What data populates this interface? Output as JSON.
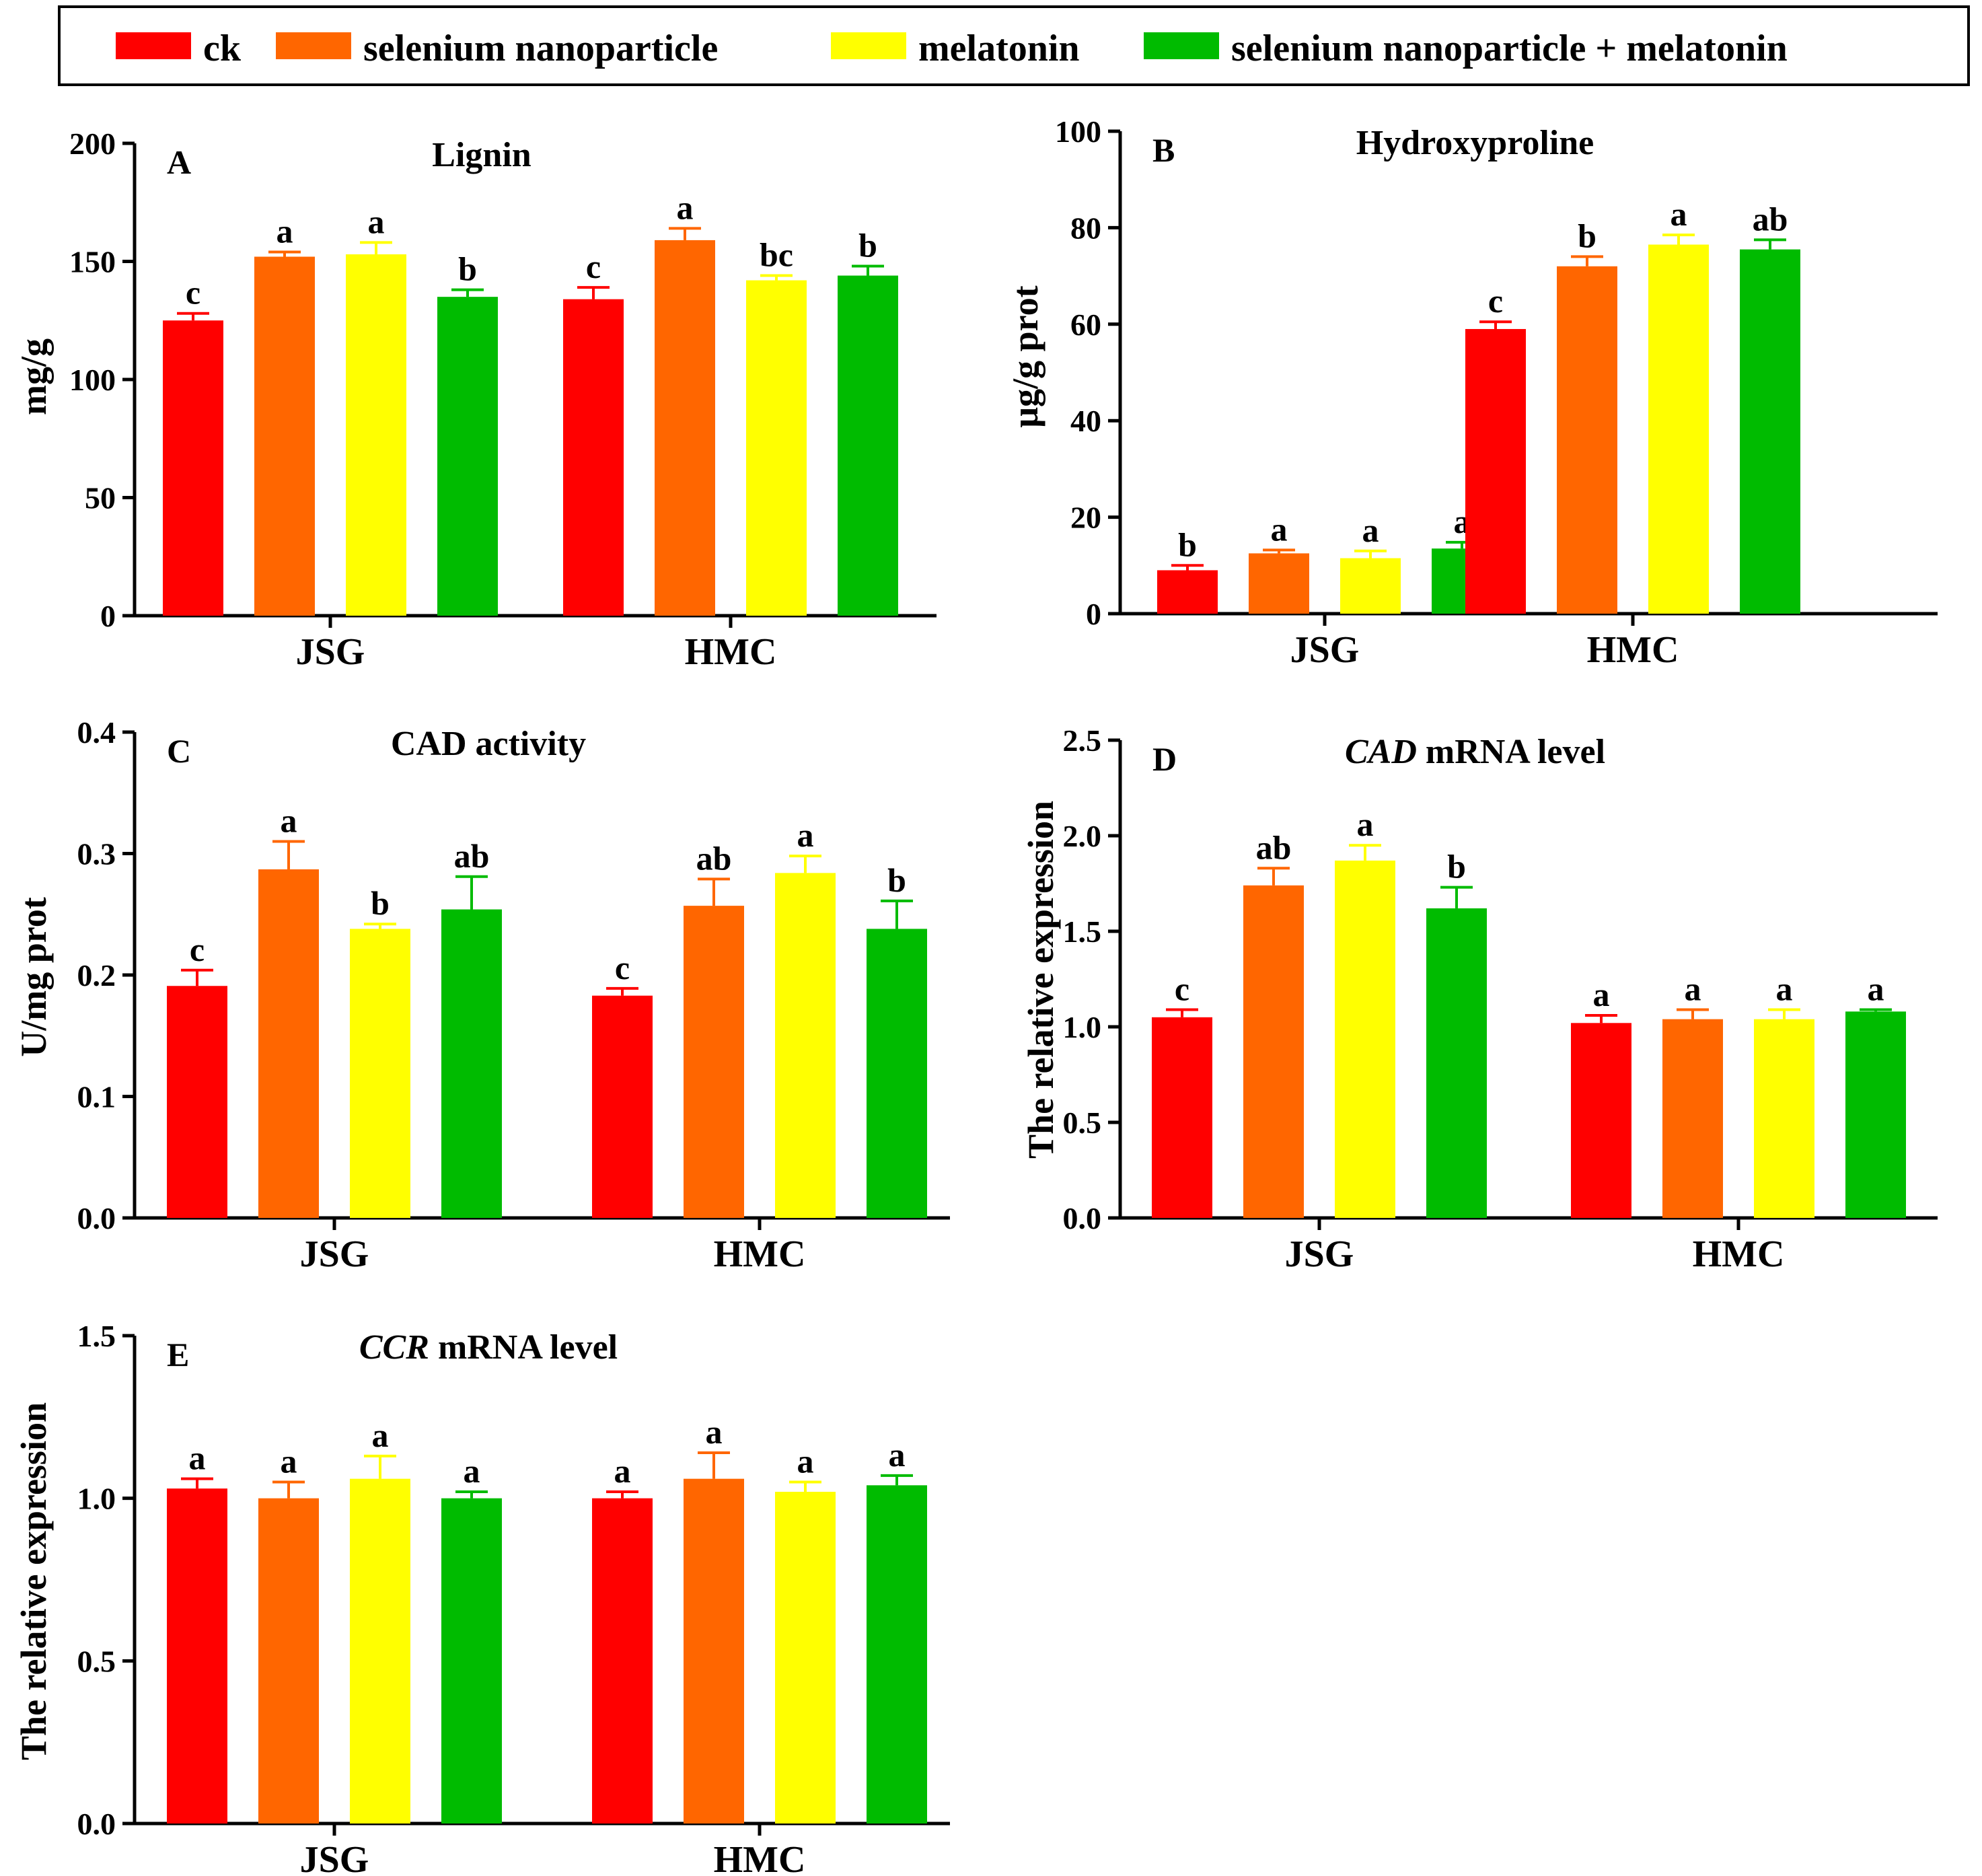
{
  "legend": {
    "items": [
      {
        "label": "ck",
        "color": "#ff0000"
      },
      {
        "label": "selenium nanoparticle",
        "color": "#ff6600"
      },
      {
        "label": "melatonin",
        "color": "#ffff00"
      },
      {
        "label": "selenium nanoparticle + melatonin",
        "color": "#00bb00"
      }
    ]
  },
  "chart_data": [
    {
      "type": "bar",
      "panel": "A",
      "title": "Lignin",
      "title_italic": "",
      "ylabel": "mg/g",
      "xlabel": "",
      "ylim": [
        0,
        200
      ],
      "yticks": [
        "0",
        "50",
        "100",
        "150",
        "200"
      ],
      "categories": [
        "JSG",
        "HMC"
      ],
      "series": [
        {
          "name": "ck",
          "values": [
            125,
            134
          ],
          "errors": [
            3,
            5
          ],
          "labels": [
            "c",
            "c"
          ]
        },
        {
          "name": "selenium nanoparticle",
          "values": [
            152,
            159
          ],
          "errors": [
            2,
            5
          ],
          "labels": [
            "a",
            "a"
          ]
        },
        {
          "name": "melatonin",
          "values": [
            153,
            142
          ],
          "errors": [
            5,
            2
          ],
          "labels": [
            "a",
            "bc"
          ]
        },
        {
          "name": "selenium nanoparticle + melatonin",
          "values": [
            135,
            144
          ],
          "errors": [
            3,
            4
          ],
          "labels": [
            "b",
            "b"
          ]
        }
      ]
    },
    {
      "type": "bar",
      "panel": "B",
      "title": "Hydroxyproline",
      "title_italic": "",
      "ylabel": "μg/g prot",
      "xlabel": "",
      "ylim": [
        0,
        100
      ],
      "yticks": [
        "0",
        "20",
        "40",
        "60",
        "80",
        "100"
      ],
      "categories": [
        "JSG",
        "HMC"
      ],
      "series": [
        {
          "name": "ck",
          "values": [
            9,
            59
          ],
          "errors": [
            1,
            1.5
          ],
          "labels": [
            "b",
            "c"
          ]
        },
        {
          "name": "selenium nanoparticle",
          "values": [
            12.5,
            72
          ],
          "errors": [
            0.7,
            2
          ],
          "labels": [
            "a",
            "b"
          ]
        },
        {
          "name": "melatonin",
          "values": [
            11.5,
            76.5
          ],
          "errors": [
            1.5,
            2
          ],
          "labels": [
            "a",
            "a"
          ]
        },
        {
          "name": "selenium nanoparticle + melatonin",
          "values": [
            13.5,
            75.5
          ],
          "errors": [
            1.3,
            2
          ],
          "labels": [
            "a",
            "ab"
          ]
        }
      ]
    },
    {
      "type": "bar",
      "panel": "C",
      "title": "CAD activity",
      "title_italic": "",
      "ylabel": "U/mg prot",
      "xlabel": "",
      "ylim": [
        0,
        0.4
      ],
      "yticks": [
        "0.0",
        "0.1",
        "0.2",
        "0.3",
        "0.4"
      ],
      "categories": [
        "JSG",
        "HMC"
      ],
      "series": [
        {
          "name": "ck",
          "values": [
            0.191,
            0.183
          ],
          "errors": [
            0.013,
            0.006
          ],
          "labels": [
            "c",
            "c"
          ]
        },
        {
          "name": "selenium nanoparticle",
          "values": [
            0.287,
            0.257
          ],
          "errors": [
            0.023,
            0.022
          ],
          "labels": [
            "a",
            "ab"
          ]
        },
        {
          "name": "melatonin",
          "values": [
            0.238,
            0.284
          ],
          "errors": [
            0.004,
            0.014
          ],
          "labels": [
            "b",
            "a"
          ]
        },
        {
          "name": "selenium nanoparticle + melatonin",
          "values": [
            0.254,
            0.238
          ],
          "errors": [
            0.027,
            0.023
          ],
          "labels": [
            "ab",
            "b"
          ]
        }
      ]
    },
    {
      "type": "bar",
      "panel": "D",
      "title": " mRNA level",
      "title_italic": "CAD",
      "ylabel": "The relative expression",
      "xlabel": "",
      "ylim": [
        0,
        2.5
      ],
      "yticks": [
        "0.0",
        "0.5",
        "1.0",
        "1.5",
        "2.0",
        "2.5"
      ],
      "categories": [
        "JSG",
        "HMC"
      ],
      "series": [
        {
          "name": "ck",
          "values": [
            1.05,
            1.02
          ],
          "errors": [
            0.04,
            0.04
          ],
          "labels": [
            "c",
            "a"
          ]
        },
        {
          "name": "selenium nanoparticle",
          "values": [
            1.74,
            1.04
          ],
          "errors": [
            0.09,
            0.05
          ],
          "labels": [
            "ab",
            "a"
          ]
        },
        {
          "name": "melatonin",
          "values": [
            1.87,
            1.04
          ],
          "errors": [
            0.08,
            0.05
          ],
          "labels": [
            "a",
            "a"
          ]
        },
        {
          "name": "selenium nanoparticle + melatonin",
          "values": [
            1.62,
            1.08
          ],
          "errors": [
            0.11,
            0.01
          ],
          "labels": [
            "b",
            "a"
          ]
        }
      ]
    },
    {
      "type": "bar",
      "panel": "E",
      "title": " mRNA level",
      "title_italic": "CCR",
      "ylabel": "The relative expression",
      "xlabel": "",
      "ylim": [
        0,
        1.5
      ],
      "yticks": [
        "0.0",
        "0.5",
        "1.0",
        "1.5"
      ],
      "categories": [
        "JSG",
        "HMC"
      ],
      "series": [
        {
          "name": "ck",
          "values": [
            1.03,
            1.0
          ],
          "errors": [
            0.03,
            0.02
          ],
          "labels": [
            "a",
            "a"
          ]
        },
        {
          "name": "selenium nanoparticle",
          "values": [
            1.0,
            1.06
          ],
          "errors": [
            0.05,
            0.08
          ],
          "labels": [
            "a",
            "a"
          ]
        },
        {
          "name": "melatonin",
          "values": [
            1.06,
            1.02
          ],
          "errors": [
            0.07,
            0.03
          ],
          "labels": [
            "a",
            "a"
          ]
        },
        {
          "name": "selenium nanoparticle + melatonin",
          "values": [
            1.0,
            1.04
          ],
          "errors": [
            0.02,
            0.03
          ],
          "labels": [
            "a",
            "a"
          ]
        }
      ]
    }
  ]
}
